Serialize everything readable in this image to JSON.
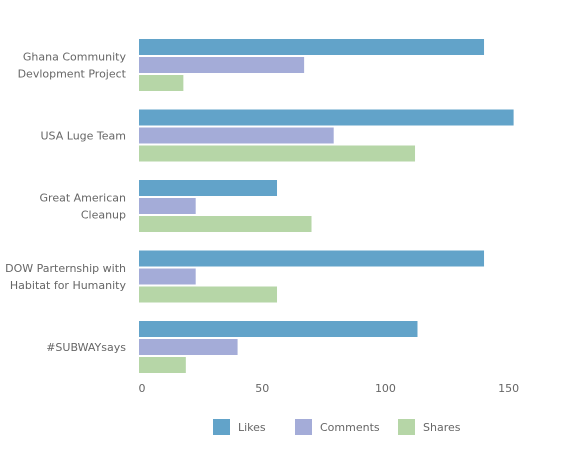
{
  "chart_data": {
    "type": "bar",
    "orientation": "horizontal",
    "categories": [
      [
        "Ghana Community",
        "Devlopment Project"
      ],
      [
        "USA Luge Team"
      ],
      [
        "Great American",
        "Cleanup"
      ],
      [
        "DOW Parternship with",
        "Habitat for Humanity"
      ],
      [
        "#SUBWAYsays"
      ]
    ],
    "series": [
      {
        "name": "Likes",
        "color": "#62a3c9",
        "values": [
          140,
          152,
          56,
          140,
          113
        ]
      },
      {
        "name": "Comments",
        "color": "#a4acd8",
        "values": [
          67,
          79,
          23,
          23,
          40
        ]
      },
      {
        "name": "Shares",
        "color": "#b6d6a7",
        "values": [
          18,
          112,
          70,
          56,
          19
        ]
      }
    ],
    "xlim": [
      0,
      155
    ],
    "xticks": [
      "0",
      "50",
      "100",
      "150"
    ],
    "xtick_values": [
      0,
      50,
      100,
      150
    ],
    "grid": false,
    "legend_position": "bottom"
  }
}
